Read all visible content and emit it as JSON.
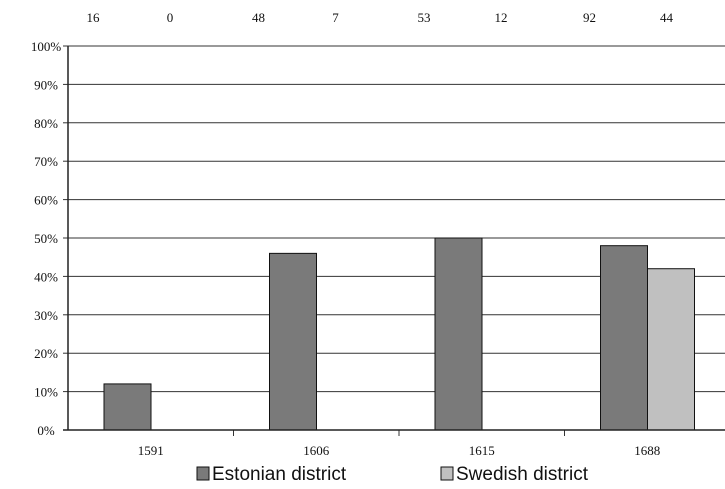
{
  "chart_data": {
    "type": "bar",
    "categories": [
      "1591",
      "1606",
      "1615",
      "1688"
    ],
    "series": [
      {
        "name": "Estonian district",
        "color": "#7a7a7a",
        "values": [
          12,
          46,
          50,
          48
        ]
      },
      {
        "name": "Swedish district",
        "color": "#c0c0c0",
        "values": [
          0,
          0,
          0,
          42
        ]
      }
    ],
    "top_counts": [
      [
        "16",
        "0"
      ],
      [
        "48",
        "7"
      ],
      [
        "53",
        "12"
      ],
      [
        "92",
        "44"
      ]
    ],
    "y_ticks": [
      "0%",
      "10%",
      "20%",
      "30%",
      "40%",
      "50%",
      "60%",
      "70%",
      "80%",
      "90%",
      "100%"
    ],
    "ylim": [
      0,
      100
    ],
    "grid": true,
    "legend_position": "bottom",
    "title": "",
    "xlabel": "",
    "ylabel": ""
  }
}
